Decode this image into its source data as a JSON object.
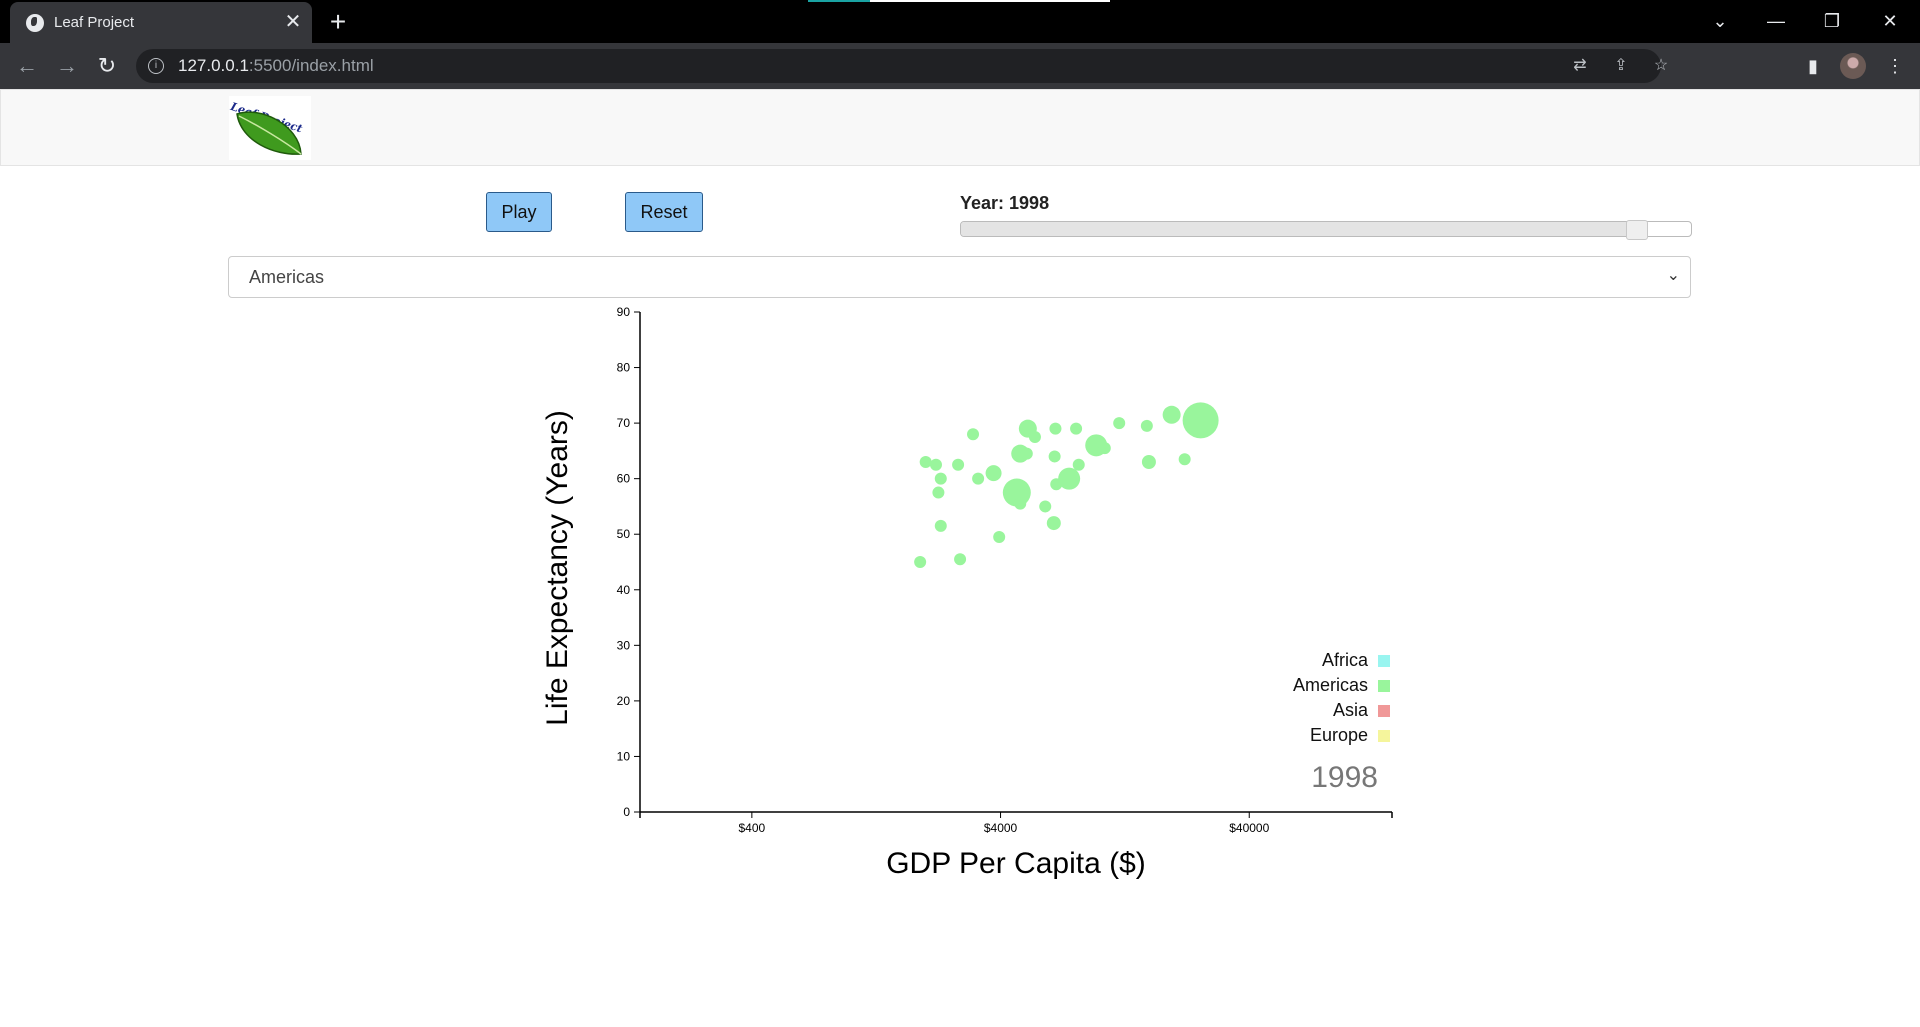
{
  "browser": {
    "tab_title": "Leaf Project",
    "url_host": "127.0.0.1",
    "url_rest": ":5500/index.html"
  },
  "header": {
    "logo_text": "Leaf Project"
  },
  "controls": {
    "play_label": "Play",
    "reset_label": "Reset",
    "year_label": "Year: 1998",
    "slider_fraction": 0.925,
    "continent_selected": "Americas"
  },
  "colors": {
    "Africa": "#99f5f0",
    "Americas": "#99f59c",
    "Asia": "#f09898",
    "Europe": "#f5f59c"
  },
  "icons": [
    "globe-icon",
    "close-icon",
    "plus-icon",
    "chevron-down-icon",
    "minimize-icon",
    "restore-icon",
    "back-icon",
    "forward-icon",
    "reload-icon",
    "info-icon",
    "translate-icon",
    "share-icon",
    "star-icon",
    "sidepanel-icon",
    "avatar",
    "more-icon"
  ],
  "chart_data": {
    "type": "scatter",
    "xlabel": "GDP Per Capita ($)",
    "ylabel": "Life Expectancy (Years)",
    "x_scale": "log",
    "x_ticks": [
      {
        "value": 400,
        "label": "$400"
      },
      {
        "value": 4000,
        "label": "$4000"
      },
      {
        "value": 40000,
        "label": "$40000"
      }
    ],
    "y_ticks": [
      0,
      10,
      20,
      30,
      40,
      50,
      60,
      70,
      80,
      90
    ],
    "xlim": [
      142,
      150000
    ],
    "ylim": [
      0,
      90
    ],
    "year_watermark": "1998",
    "legend": [
      {
        "name": "Africa"
      },
      {
        "name": "Americas"
      },
      {
        "name": "Asia"
      },
      {
        "name": "Europe"
      }
    ],
    "series": [
      {
        "name": "Americas",
        "points": [
          {
            "x": 1900,
            "y": 45,
            "r": 6
          },
          {
            "x": 2750,
            "y": 45.5,
            "r": 6
          },
          {
            "x": 2300,
            "y": 51.5,
            "r": 6
          },
          {
            "x": 3950,
            "y": 49.5,
            "r": 6
          },
          {
            "x": 2250,
            "y": 57.5,
            "r": 6
          },
          {
            "x": 4650,
            "y": 57.5,
            "r": 14
          },
          {
            "x": 4800,
            "y": 55.5,
            "r": 6
          },
          {
            "x": 6050,
            "y": 55,
            "r": 6
          },
          {
            "x": 6550,
            "y": 52,
            "r": 7
          },
          {
            "x": 2300,
            "y": 60,
            "r": 6
          },
          {
            "x": 3250,
            "y": 60,
            "r": 6
          },
          {
            "x": 3750,
            "y": 61,
            "r": 8
          },
          {
            "x": 6700,
            "y": 59,
            "r": 6
          },
          {
            "x": 7550,
            "y": 60,
            "r": 11
          },
          {
            "x": 2000,
            "y": 63,
            "r": 6
          },
          {
            "x": 2200,
            "y": 62.5,
            "r": 6
          },
          {
            "x": 2700,
            "y": 62.5,
            "r": 6
          },
          {
            "x": 4800,
            "y": 64.5,
            "r": 9
          },
          {
            "x": 5100,
            "y": 64.5,
            "r": 6
          },
          {
            "x": 6600,
            "y": 64,
            "r": 6
          },
          {
            "x": 8250,
            "y": 62.5,
            "r": 6
          },
          {
            "x": 9700,
            "y": 66,
            "r": 11
          },
          {
            "x": 10500,
            "y": 65.5,
            "r": 6
          },
          {
            "x": 15800,
            "y": 63,
            "r": 7
          },
          {
            "x": 22000,
            "y": 63.5,
            "r": 6
          },
          {
            "x": 3100,
            "y": 68,
            "r": 6
          },
          {
            "x": 5150,
            "y": 69,
            "r": 9
          },
          {
            "x": 5500,
            "y": 67.5,
            "r": 6
          },
          {
            "x": 6650,
            "y": 69,
            "r": 6
          },
          {
            "x": 8050,
            "y": 69,
            "r": 6
          },
          {
            "x": 12000,
            "y": 70,
            "r": 6
          },
          {
            "x": 15500,
            "y": 69.5,
            "r": 6
          },
          {
            "x": 19500,
            "y": 71.5,
            "r": 9
          },
          {
            "x": 25500,
            "y": 70.5,
            "r": 18
          }
        ]
      }
    ]
  }
}
